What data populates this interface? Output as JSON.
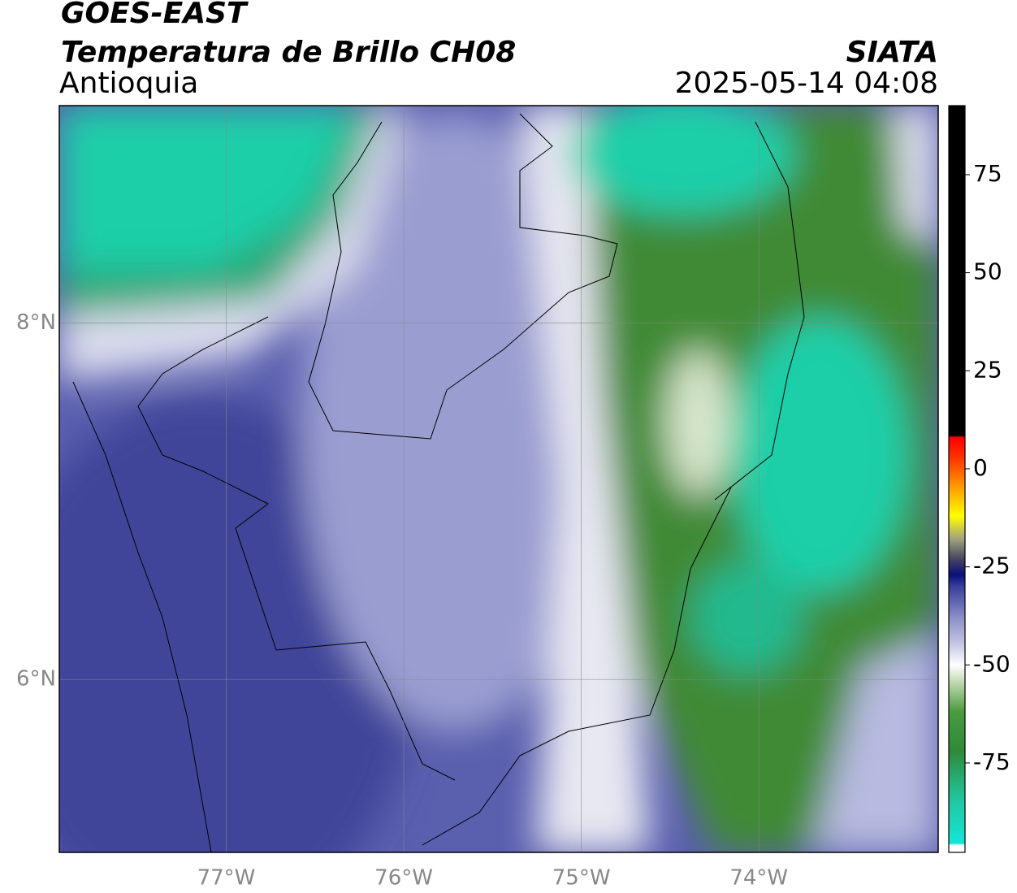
{
  "header": {
    "title": "GOES-EAST",
    "subtitle": "Temperatura de Brillo CH08",
    "region": "Antioquia",
    "source": "SIATA",
    "datetime": "2025-05-14 04:08"
  },
  "map": {
    "xlim": [
      -77.94,
      -72.99
    ],
    "ylim": [
      5.03,
      9.22
    ],
    "xticks": [
      {
        "value": -77,
        "label": "77°W"
      },
      {
        "value": -76,
        "label": "76°W"
      },
      {
        "value": -75,
        "label": "75°W"
      },
      {
        "value": -74,
        "label": "74°W"
      }
    ],
    "yticks": [
      {
        "value": 8,
        "label": "8°N"
      },
      {
        "value": 6,
        "label": "6°N"
      }
    ],
    "grid": true,
    "colorbar": {
      "clim": [
        -97.8,
        92.6
      ],
      "ticks": [
        75,
        50,
        25,
        0,
        -25,
        -50,
        -75
      ],
      "colormap": [
        {
          "value": -97.8,
          "color": "#ffffff"
        },
        {
          "value": -96,
          "color": "#ffffff"
        },
        {
          "value": -95.5,
          "color": "#12e6d8"
        },
        {
          "value": -85,
          "color": "#1fc9a4"
        },
        {
          "value": -72,
          "color": "#2e8b3a"
        },
        {
          "value": -62,
          "color": "#4a9a3e"
        },
        {
          "value": -55,
          "color": "#b8d4a8"
        },
        {
          "value": -50,
          "color": "#ffffff"
        },
        {
          "value": -45,
          "color": "#c8c9e4"
        },
        {
          "value": -38,
          "color": "#8c8fc8"
        },
        {
          "value": -30,
          "color": "#3a3f9a"
        },
        {
          "value": -27,
          "color": "#0a0f7a"
        },
        {
          "value": -23,
          "color": "#444460"
        },
        {
          "value": -18,
          "color": "#a0a080"
        },
        {
          "value": -12,
          "color": "#ffff00"
        },
        {
          "value": -5,
          "color": "#ffa000"
        },
        {
          "value": 3,
          "color": "#ff3000"
        },
        {
          "value": 8,
          "color": "#ff0000"
        },
        {
          "value": 8.5,
          "color": "#000000"
        },
        {
          "value": 92.6,
          "color": "#000000"
        }
      ]
    }
  }
}
